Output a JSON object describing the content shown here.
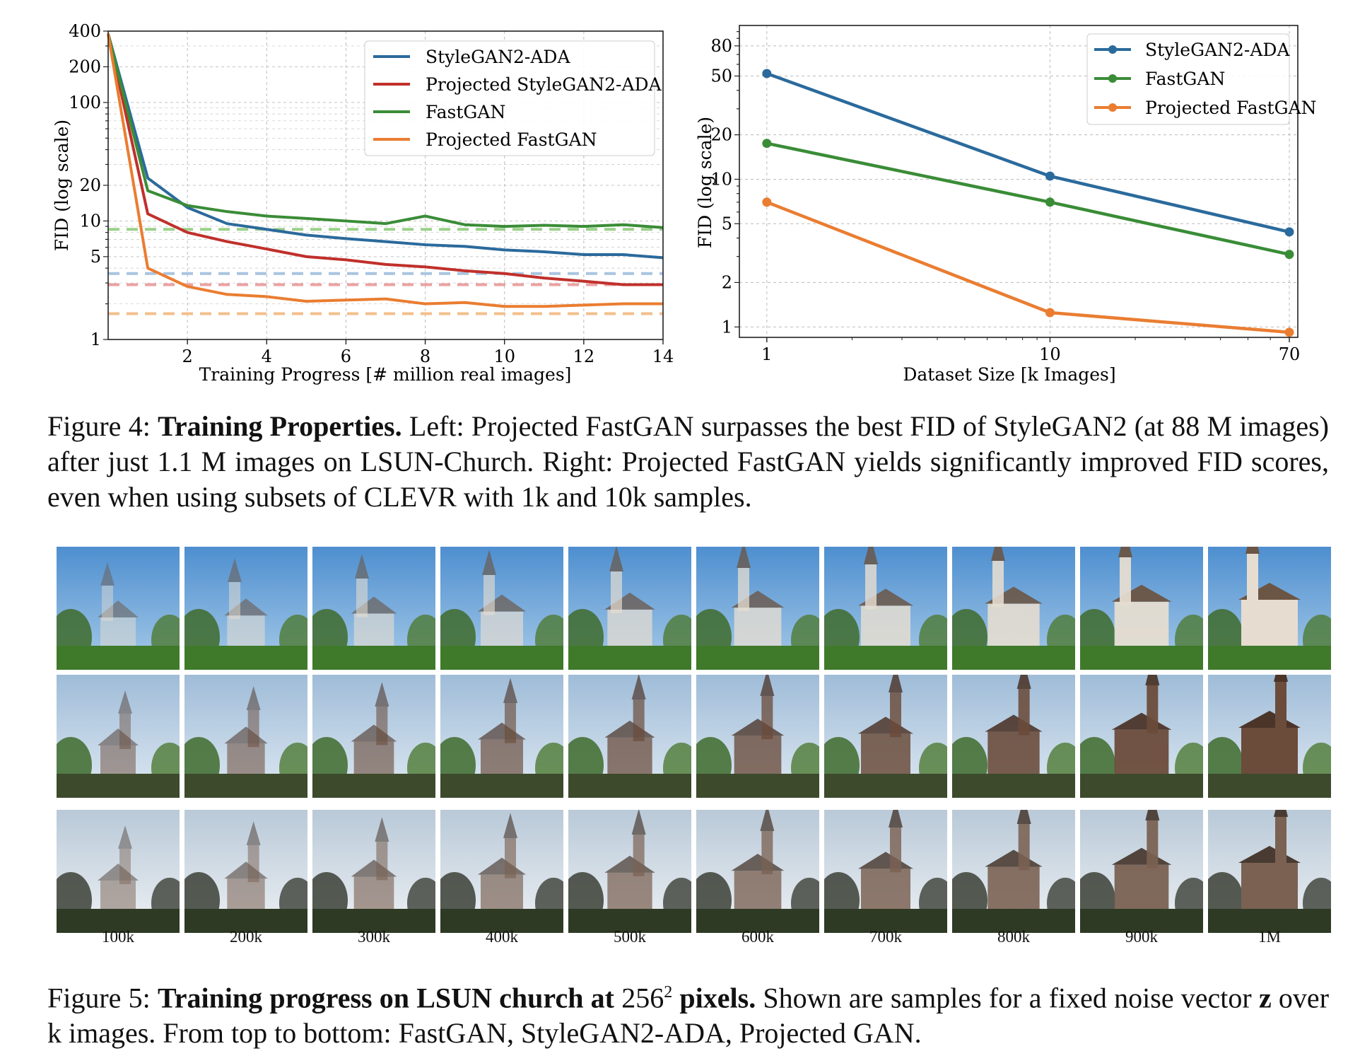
{
  "figure4": {
    "caption_prefix": "Figure 4: ",
    "caption_bold": "Training Properties.",
    "caption_rest": " Left: Projected FastGAN surpasses the best FID of StyleGAN2 (at 88 M images) after just 1.1 M images on LSUN-Church.  Right: Projected FastGAN yields significantly improved FID scores, even when using subsets of CLEVR with 1k and 10k samples."
  },
  "figure5": {
    "caption_prefix": "Figure 5: ",
    "caption_bold_1": "Training progress on LSUN church at ",
    "caption_num": "256",
    "caption_sup": "2",
    "caption_bold_2": " pixels.",
    "caption_rest_1": " Shown are samples for a fixed noise vector ",
    "caption_z": "z",
    "caption_rest_2": " over k images. From top to bottom: FastGAN, StyleGAN2-ADA, Projected GAN.",
    "column_labels": [
      "100k",
      "200k",
      "300k",
      "400k",
      "500k",
      "600k",
      "700k",
      "800k",
      "900k",
      "1M"
    ]
  },
  "chart_data": [
    {
      "type": "line",
      "xlabel": "Training Progress [# million real images]",
      "ylabel": "FID (log scale)",
      "yscale": "log",
      "xlim": [
        0,
        14
      ],
      "ylim": [
        1,
        400
      ],
      "xticks": [
        2,
        4,
        6,
        8,
        10,
        12,
        14
      ],
      "yticks": [
        1,
        5,
        10,
        20,
        100,
        200,
        400
      ],
      "grid": true,
      "legend_position": "top-right",
      "series": [
        {
          "name": "StyleGAN2-ADA",
          "color": "#2b6a9c",
          "x": [
            0,
            1,
            2,
            3,
            4,
            5,
            6,
            7,
            8,
            9,
            10,
            11,
            12,
            13,
            14
          ],
          "values": [
            380,
            23,
            13,
            9.5,
            8.5,
            7.6,
            7.1,
            6.7,
            6.3,
            6.1,
            5.7,
            5.5,
            5.2,
            5.2,
            4.9
          ]
        },
        {
          "name": "Projected StyleGAN2-ADA",
          "color": "#c0302b",
          "x": [
            0,
            1,
            2,
            3,
            4,
            5,
            6,
            7,
            8,
            9,
            10,
            11,
            12,
            13,
            14
          ],
          "values": [
            380,
            11.5,
            8,
            6.7,
            5.8,
            5,
            4.7,
            4.3,
            4.1,
            3.8,
            3.6,
            3.3,
            3.1,
            2.9,
            2.9
          ]
        },
        {
          "name": "FastGAN",
          "color": "#3a8c37",
          "x": [
            0,
            1,
            2,
            3,
            4,
            5,
            6,
            7,
            8,
            9,
            10,
            11,
            12,
            13,
            14
          ],
          "values": [
            380,
            18,
            13.5,
            12,
            11,
            10.5,
            10,
            9.5,
            11,
            9.3,
            9,
            9.2,
            9,
            9.3,
            8.8
          ]
        },
        {
          "name": "Projected FastGAN",
          "color": "#ea7d31",
          "x": [
            0,
            1,
            2,
            3,
            4,
            5,
            6,
            7,
            8,
            9,
            10,
            11,
            12,
            13,
            14
          ],
          "values": [
            380,
            4,
            2.8,
            2.4,
            2.3,
            2.1,
            2.15,
            2.2,
            2,
            2.05,
            1.9,
            1.9,
            1.95,
            2.0,
            2.0
          ]
        }
      ],
      "reference_lines": [
        {
          "series": "FastGAN",
          "value": 8.5,
          "color": "#9bd08a"
        },
        {
          "series": "StyleGAN2-ADA",
          "value": 3.6,
          "color": "#a9c4e0"
        },
        {
          "series": "Projected StyleGAN2-ADA",
          "value": 2.9,
          "color": "#eba1a1"
        },
        {
          "series": "Projected FastGAN",
          "value": 1.65,
          "color": "#f3bf8c"
        }
      ]
    },
    {
      "type": "line",
      "xlabel": "Dataset Size [k Images]",
      "ylabel": "FID (log scale)",
      "xscale": "log",
      "yscale": "log",
      "xlim": [
        0.8,
        75
      ],
      "ylim": [
        0.85,
        110
      ],
      "xticks": [
        1,
        10,
        70
      ],
      "yticks": [
        1,
        2,
        5,
        10,
        20,
        50,
        80
      ],
      "grid": true,
      "legend_position": "top-right",
      "series": [
        {
          "name": "StyleGAN2-ADA",
          "color": "#2b6a9c",
          "x": [
            1,
            10,
            70
          ],
          "values": [
            52,
            10.5,
            4.4
          ]
        },
        {
          "name": "FastGAN",
          "color": "#3a8c37",
          "x": [
            1,
            10,
            70
          ],
          "values": [
            17.5,
            7.0,
            3.1
          ]
        },
        {
          "name": "Projected FastGAN",
          "color": "#ea7d31",
          "x": [
            1,
            10,
            70
          ],
          "values": [
            7.0,
            1.25,
            0.92
          ]
        }
      ]
    }
  ]
}
